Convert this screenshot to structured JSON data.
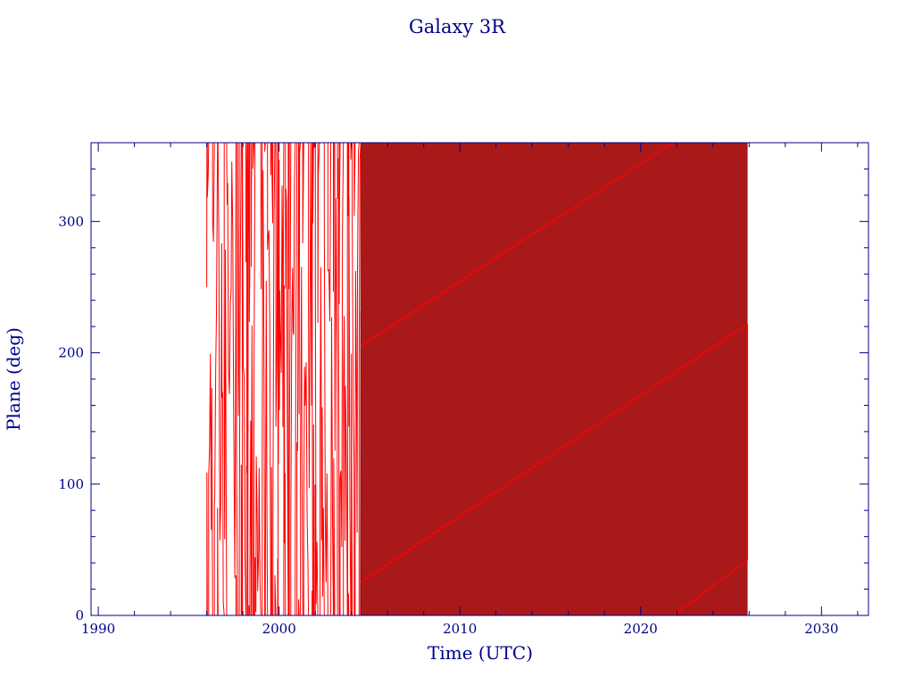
{
  "chart_data": {
    "type": "line",
    "title": "Galaxy 3R",
    "xlabel": "Time (UTC)",
    "ylabel": "Plane (deg)",
    "xlim": [
      1989.6,
      2032.6
    ],
    "ylim": [
      0,
      360
    ],
    "x_ticks": [
      "1990",
      "2000",
      "2010",
      "2020",
      "2030"
    ],
    "y_ticks": [
      "0",
      "100",
      "200",
      "300"
    ],
    "grid": false,
    "colors": {
      "axes": "#00008b",
      "series": "#ff0000"
    },
    "series": [
      {
        "segments": [
          {
            "x": [
              1996.0,
              2004.5
            ],
            "y": [
              250,
              210
            ],
            "description": "noisy phase, wrapping 0-360 rapidly"
          },
          {
            "x": [
              2004.5,
              2021.8
            ],
            "y": [
              205,
              360
            ]
          },
          {
            "x": [
              2004.5,
              2025.9
            ],
            "y": [
              25,
              222
            ]
          },
          {
            "x": [
              2021.8,
              2025.9
            ],
            "y": [
              0,
              42
            ]
          },
          {
            "x": [
              2025.9,
              2025.9
            ],
            "y": [
              42,
              222
            ]
          }
        ],
        "dense_wrap": {
          "x_start": 2004.5,
          "x_end": 2025.9,
          "cycles_per_year": 28
        }
      }
    ]
  }
}
